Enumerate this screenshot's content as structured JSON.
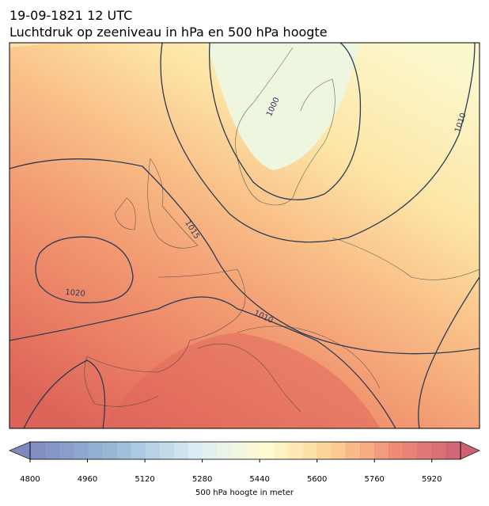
{
  "title": [
    "19-09-1821 12 UTC",
    "Luchtdruk op zeeniveau in hPa en 500 hPa hoogte"
  ],
  "contour_labels": [
    "1000",
    "1010",
    "1015",
    "1020",
    "1010"
  ],
  "colorbar": {
    "lim": [
      4800,
      6000
    ],
    "ticks": [
      4800,
      4960,
      5120,
      5280,
      5440,
      5600,
      5760,
      5920
    ],
    "label": "500 hPa hoogte in meter"
  }
}
